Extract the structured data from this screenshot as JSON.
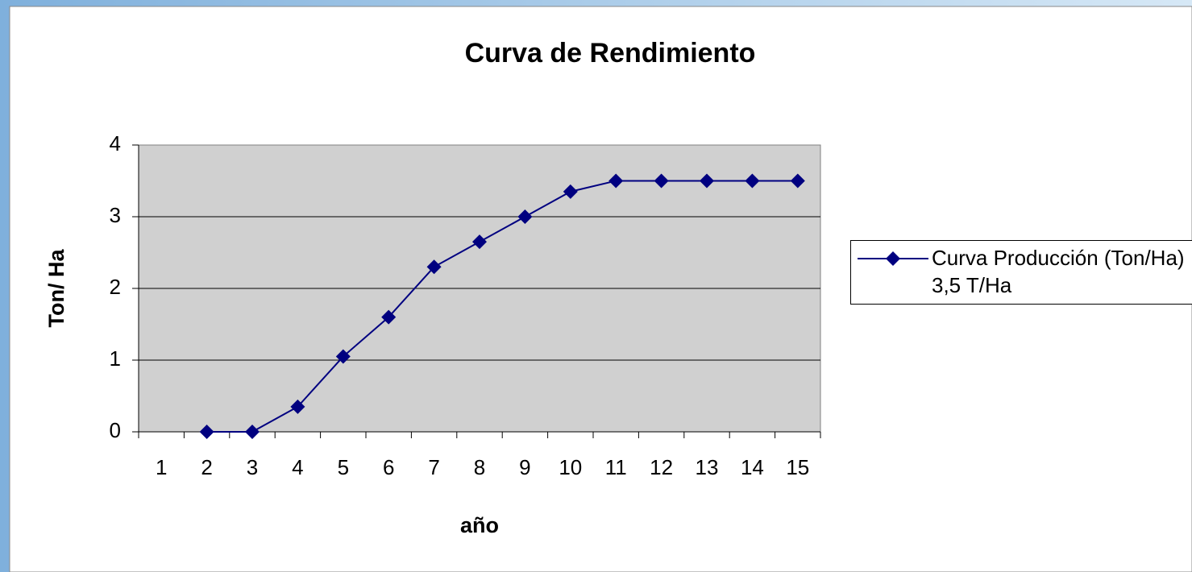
{
  "chart_data": {
    "type": "line",
    "title": "Curva de Rendimiento",
    "x_label": "año",
    "y_label": "Ton/ Ha",
    "categories": [
      "1",
      "2",
      "3",
      "4",
      "5",
      "6",
      "7",
      "8",
      "9",
      "10",
      "11",
      "12",
      "13",
      "14",
      "15"
    ],
    "series": [
      {
        "name": "Curva Producción (Ton/Ha) 3,5 T/Ha",
        "color": "#000080",
        "values": [
          null,
          0,
          0,
          0.35,
          1.05,
          1.6,
          2.3,
          2.65,
          3.0,
          3.35,
          3.5,
          3.5,
          3.5,
          3.5,
          3.5
        ]
      }
    ],
    "ylim": [
      0,
      4
    ],
    "yticks": [
      0,
      1,
      2,
      3,
      4
    ],
    "grid": true
  }
}
